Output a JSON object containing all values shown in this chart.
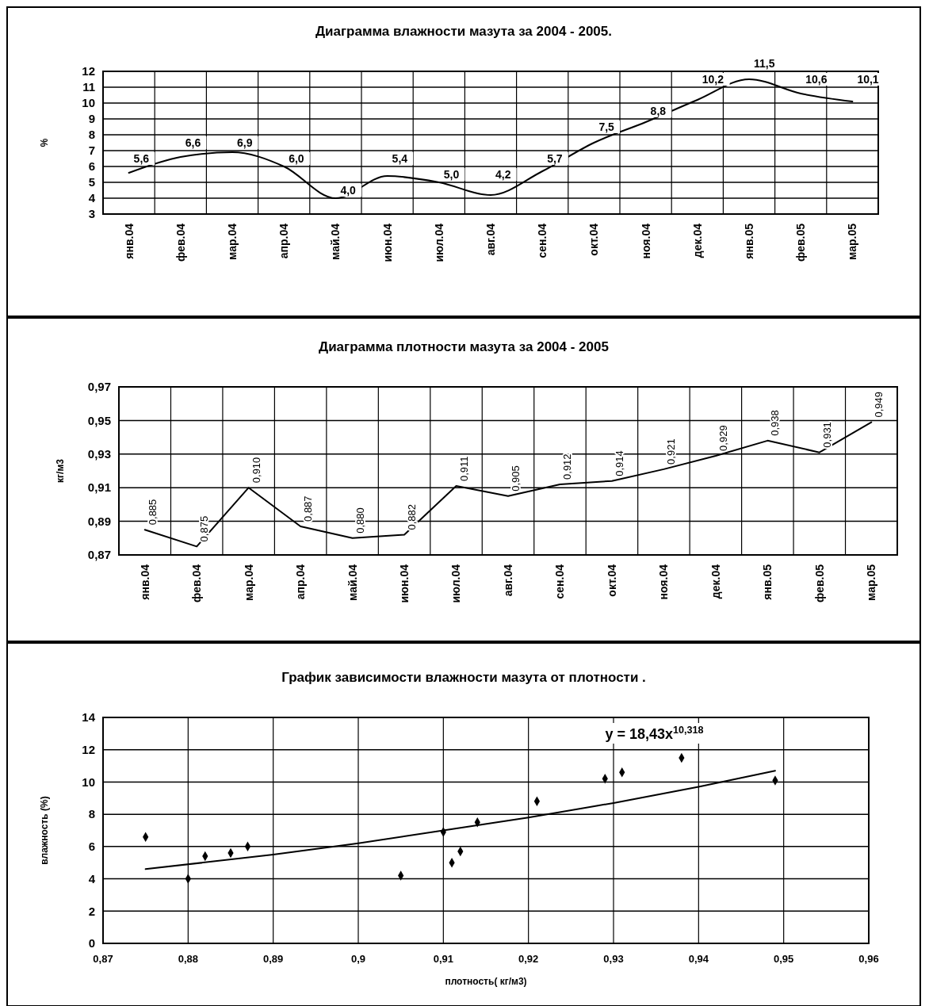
{
  "chart_data": [
    {
      "type": "line",
      "title": "Диаграмма влажности мазута за 2004 - 2005.",
      "ylabel": "%",
      "categories": [
        "янв.04",
        "фев.04",
        "мар.04",
        "апр.04",
        "май.04",
        "июн.04",
        "июл.04",
        "авг.04",
        "сен.04",
        "окт.04",
        "ноя.04",
        "дек.04",
        "янв.05",
        "фев.05",
        "мар.05"
      ],
      "series": [
        {
          "color": "#000000",
          "values": [
            5.6,
            6.6,
            6.9,
            6.0,
            4.0,
            5.4,
            5.0,
            4.2,
            5.7,
            7.5,
            8.8,
            10.2,
            11.5,
            10.6,
            10.1
          ],
          "value_labels": [
            "5,6",
            "6,6",
            "6,9",
            "6,0",
            "4,0",
            "5,4",
            "5,0",
            "4,2",
            "5,7",
            "7,5",
            "8,8",
            "10,2",
            "11,5",
            "10,6",
            "10,1"
          ]
        }
      ],
      "ylim": [
        3,
        12
      ],
      "yticks": [
        3,
        4,
        5,
        6,
        7,
        8,
        9,
        10,
        11,
        12
      ],
      "grid": true,
      "marker": "none"
    },
    {
      "type": "line",
      "title": "Диаграмма плотности мазута за 2004 - 2005",
      "ylabel": "кг/м3",
      "categories": [
        "янв.04",
        "фев.04",
        "мар.04",
        "апр.04",
        "май.04",
        "июн.04",
        "июл.04",
        "авг.04",
        "сен.04",
        "окт.04",
        "ноя.04",
        "дек.04",
        "янв.05",
        "фев.05",
        "мар.05"
      ],
      "series": [
        {
          "color": "#000000",
          "values": [
            0.885,
            0.875,
            0.91,
            0.887,
            0.88,
            0.882,
            0.911,
            0.905,
            0.912,
            0.914,
            0.921,
            0.929,
            0.938,
            0.931,
            0.949
          ],
          "value_labels": [
            "0,885",
            "0,875",
            "0,910",
            "0,887",
            "0,880",
            "0,882",
            "0,911",
            "0,905",
            "0,912",
            "0,914",
            "0,921",
            "0,929",
            "0,938",
            "0,931",
            "0,949"
          ]
        }
      ],
      "ylim": [
        0.87,
        0.97
      ],
      "yticks": [
        {
          "value": 0.87,
          "label": "0,87"
        },
        {
          "value": 0.89,
          "label": "0,89"
        },
        {
          "value": 0.91,
          "label": "0,91"
        },
        {
          "value": 0.93,
          "label": "0,93"
        },
        {
          "value": 0.95,
          "label": "0,95"
        },
        {
          "value": 0.97,
          "label": "0,97"
        }
      ],
      "grid": true,
      "marker": "none"
    },
    {
      "type": "scatter",
      "title": "График зависимости влажности мазута от плотности .",
      "xlabel": "плотность( кг/м3)",
      "ylabel": "влажность (%)",
      "series": [
        {
          "color": "#000000",
          "marker": "diamond",
          "x": [
            0.875,
            0.88,
            0.882,
            0.885,
            0.887,
            0.905,
            0.91,
            0.911,
            0.912,
            0.914,
            0.921,
            0.929,
            0.931,
            0.938,
            0.949
          ],
          "values": [
            6.6,
            4.0,
            5.4,
            5.6,
            6.0,
            4.2,
            6.9,
            5.0,
            5.7,
            7.5,
            8.8,
            10.2,
            10.6,
            11.5,
            10.1
          ]
        },
        {
          "type": "line",
          "color": "#000000",
          "marker": "none",
          "x": [
            0.875,
            0.89,
            0.9,
            0.91,
            0.92,
            0.93,
            0.94,
            0.949
          ],
          "values": [
            4.6,
            5.5,
            6.2,
            7.0,
            7.8,
            8.7,
            9.7,
            10.7
          ]
        }
      ],
      "xlim": [
        0.87,
        0.96
      ],
      "xticks": [
        {
          "value": 0.87,
          "label": "0,87"
        },
        {
          "value": 0.88,
          "label": "0,88"
        },
        {
          "value": 0.89,
          "label": "0,89"
        },
        {
          "value": 0.9,
          "label": "0,9"
        },
        {
          "value": 0.91,
          "label": "0,91"
        },
        {
          "value": 0.92,
          "label": "0,92"
        },
        {
          "value": 0.93,
          "label": "0,93"
        },
        {
          "value": 0.94,
          "label": "0,94"
        },
        {
          "value": 0.95,
          "label": "0,95"
        },
        {
          "value": 0.96,
          "label": "0,96"
        }
      ],
      "ylim": [
        0,
        14
      ],
      "yticks": [
        0,
        2,
        4,
        6,
        8,
        10,
        12,
        14
      ],
      "grid": true,
      "annotations": [
        "y = 18,43x$^{10,318}$"
      ]
    }
  ]
}
